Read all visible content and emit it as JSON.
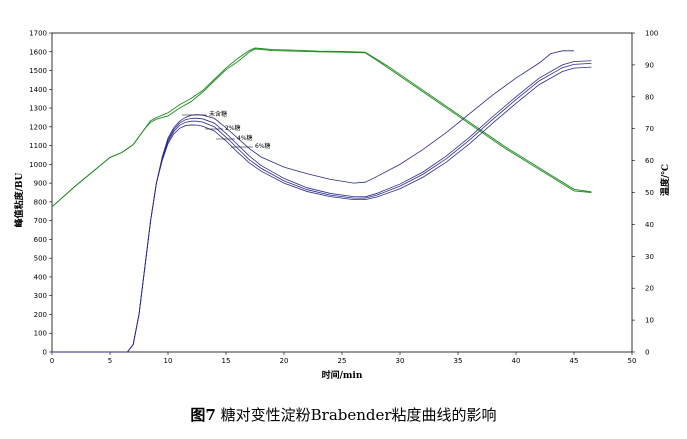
{
  "chart_data": {
    "type": "line",
    "xlabel": "时间/min",
    "ylabel_left": "峰值粘度/BU",
    "ylabel_right": "温度/℃",
    "xlim": [
      0,
      50
    ],
    "ylim_left": [
      0,
      1700
    ],
    "ylim_right": [
      0,
      100
    ],
    "x_ticks": [
      "0",
      "5",
      "10",
      "15",
      "20",
      "25",
      "30",
      "35",
      "40",
      "45",
      "50"
    ],
    "y_left_ticks": [
      "0",
      "100",
      "200",
      "300",
      "400",
      "500",
      "600",
      "700",
      "800",
      "900",
      "1000",
      "1100",
      "1200",
      "1300",
      "1400",
      "1500",
      "1600",
      "1700"
    ],
    "y_right_ticks": [
      "0",
      "10",
      "20",
      "30",
      "40",
      "50",
      "60",
      "70",
      "80",
      "90",
      "100"
    ],
    "annotations": [
      "未含糖",
      "2%糖",
      "4%糖",
      "6%糖"
    ],
    "colors": {
      "viscosity": "#2a2a8a",
      "temperature": "#1f8a1f"
    },
    "viscosity_series": [
      {
        "name": "未含糖",
        "points": [
          [
            0,
            0
          ],
          [
            5,
            0
          ],
          [
            6.5,
            0
          ],
          [
            7,
            40
          ],
          [
            7.5,
            200
          ],
          [
            8,
            450
          ],
          [
            8.5,
            700
          ],
          [
            9,
            900
          ],
          [
            9.5,
            1040
          ],
          [
            10,
            1140
          ],
          [
            10.5,
            1195
          ],
          [
            11,
            1230
          ],
          [
            11.5,
            1250
          ],
          [
            12,
            1262
          ],
          [
            12.5,
            1265
          ],
          [
            13,
            1262
          ],
          [
            14,
            1245
          ],
          [
            15,
            1195
          ],
          [
            16,
            1140
          ],
          [
            17,
            1085
          ],
          [
            18,
            1040
          ],
          [
            20,
            985
          ],
          [
            22,
            950
          ],
          [
            24,
            920
          ],
          [
            26,
            900
          ],
          [
            27,
            905
          ],
          [
            28,
            935
          ],
          [
            30,
            1000
          ],
          [
            32,
            1080
          ],
          [
            34,
            1170
          ],
          [
            36,
            1270
          ],
          [
            38,
            1370
          ],
          [
            40,
            1460
          ],
          [
            42,
            1540
          ],
          [
            43,
            1590
          ],
          [
            44,
            1605
          ],
          [
            45,
            1605
          ]
        ]
      },
      {
        "name": "2%糖",
        "points": [
          [
            0,
            0
          ],
          [
            5,
            0
          ],
          [
            6.5,
            0
          ],
          [
            7,
            40
          ],
          [
            7.5,
            200
          ],
          [
            8,
            450
          ],
          [
            8.5,
            700
          ],
          [
            9,
            900
          ],
          [
            9.5,
            1030
          ],
          [
            10,
            1130
          ],
          [
            10.5,
            1185
          ],
          [
            11,
            1220
          ],
          [
            11.5,
            1238
          ],
          [
            12,
            1245
          ],
          [
            12.5,
            1246
          ],
          [
            13,
            1242
          ],
          [
            14,
            1220
          ],
          [
            15,
            1165
          ],
          [
            16,
            1105
          ],
          [
            17,
            1045
          ],
          [
            18,
            995
          ],
          [
            20,
            925
          ],
          [
            22,
            875
          ],
          [
            24,
            845
          ],
          [
            26,
            828
          ],
          [
            27,
            827
          ],
          [
            28,
            845
          ],
          [
            30,
            895
          ],
          [
            32,
            960
          ],
          [
            34,
            1045
          ],
          [
            36,
            1145
          ],
          [
            38,
            1255
          ],
          [
            40,
            1360
          ],
          [
            42,
            1460
          ],
          [
            44,
            1530
          ],
          [
            45,
            1548
          ],
          [
            46.5,
            1552
          ]
        ]
      },
      {
        "name": "4%糖",
        "points": [
          [
            0,
            0
          ],
          [
            5,
            0
          ],
          [
            6.5,
            0
          ],
          [
            7,
            40
          ],
          [
            7.5,
            200
          ],
          [
            8,
            450
          ],
          [
            8.5,
            700
          ],
          [
            9,
            900
          ],
          [
            9.5,
            1025
          ],
          [
            10,
            1120
          ],
          [
            10.5,
            1175
          ],
          [
            11,
            1208
          ],
          [
            11.5,
            1224
          ],
          [
            12,
            1230
          ],
          [
            12.5,
            1230
          ],
          [
            13,
            1225
          ],
          [
            14,
            1200
          ],
          [
            15,
            1145
          ],
          [
            16,
            1085
          ],
          [
            17,
            1025
          ],
          [
            18,
            980
          ],
          [
            20,
            912
          ],
          [
            22,
            865
          ],
          [
            24,
            836
          ],
          [
            26,
            820
          ],
          [
            27,
            820
          ],
          [
            28,
            836
          ],
          [
            30,
            884
          ],
          [
            32,
            948
          ],
          [
            34,
            1030
          ],
          [
            36,
            1130
          ],
          [
            38,
            1240
          ],
          [
            40,
            1345
          ],
          [
            42,
            1445
          ],
          [
            44,
            1515
          ],
          [
            45,
            1533
          ],
          [
            46.5,
            1538
          ]
        ]
      },
      {
        "name": "6%糖",
        "points": [
          [
            0,
            0
          ],
          [
            5,
            0
          ],
          [
            6.5,
            0
          ],
          [
            7,
            40
          ],
          [
            7.5,
            200
          ],
          [
            8,
            450
          ],
          [
            8.5,
            700
          ],
          [
            9,
            900
          ],
          [
            9.5,
            1020
          ],
          [
            10,
            1110
          ],
          [
            10.5,
            1162
          ],
          [
            11,
            1192
          ],
          [
            11.5,
            1206
          ],
          [
            12,
            1210
          ],
          [
            12.5,
            1209
          ],
          [
            13,
            1203
          ],
          [
            14,
            1178
          ],
          [
            15,
            1125
          ],
          [
            16,
            1065
          ],
          [
            17,
            1008
          ],
          [
            18,
            965
          ],
          [
            20,
            900
          ],
          [
            22,
            855
          ],
          [
            24,
            828
          ],
          [
            26,
            812
          ],
          [
            27,
            812
          ],
          [
            28,
            826
          ],
          [
            30,
            870
          ],
          [
            32,
            932
          ],
          [
            34,
            1012
          ],
          [
            36,
            1110
          ],
          [
            38,
            1220
          ],
          [
            40,
            1325
          ],
          [
            42,
            1425
          ],
          [
            44,
            1495
          ],
          [
            45,
            1513
          ],
          [
            46.5,
            1518
          ]
        ]
      }
    ],
    "temperature_series": [
      {
        "points": [
          [
            0,
            45.5
          ],
          [
            2,
            52
          ],
          [
            4,
            58
          ],
          [
            5,
            61
          ],
          [
            6,
            62.5
          ],
          [
            7,
            65
          ],
          [
            8,
            70
          ],
          [
            8.5,
            72
          ],
          [
            9,
            73
          ],
          [
            10,
            74
          ],
          [
            11,
            76.5
          ],
          [
            12,
            78.5
          ],
          [
            13,
            81.5
          ],
          [
            14,
            85
          ],
          [
            15,
            88.5
          ],
          [
            16,
            91
          ],
          [
            17,
            94
          ],
          [
            17.5,
            95
          ],
          [
            19,
            94.5
          ],
          [
            21,
            94.3
          ],
          [
            23,
            94.1
          ],
          [
            25,
            94
          ],
          [
            27,
            93.8
          ],
          [
            29,
            89
          ],
          [
            31,
            84
          ],
          [
            33,
            79
          ],
          [
            35,
            74
          ],
          [
            37,
            69
          ],
          [
            39,
            64
          ],
          [
            41,
            59.5
          ],
          [
            43,
            55
          ],
          [
            45,
            50.5
          ],
          [
            46.5,
            50
          ]
        ]
      },
      {
        "points": [
          [
            0,
            45.5
          ],
          [
            2,
            52
          ],
          [
            4,
            58
          ],
          [
            5,
            61
          ],
          [
            6,
            62.5
          ],
          [
            7,
            65
          ],
          [
            8,
            70
          ],
          [
            8.5,
            72.5
          ],
          [
            9,
            73.5
          ],
          [
            10,
            75
          ],
          [
            11,
            77.5
          ],
          [
            12,
            79.5
          ],
          [
            13,
            82
          ],
          [
            14,
            85.5
          ],
          [
            15,
            89
          ],
          [
            16,
            92
          ],
          [
            17,
            94.5
          ],
          [
            17.5,
            95.3
          ],
          [
            19,
            94.8
          ],
          [
            21,
            94.6
          ],
          [
            23,
            94.3
          ],
          [
            25,
            94.2
          ],
          [
            27,
            94
          ],
          [
            29,
            89.5
          ],
          [
            31,
            84.5
          ],
          [
            33,
            79.5
          ],
          [
            35,
            74.5
          ],
          [
            37,
            69.5
          ],
          [
            39,
            64.5
          ],
          [
            41,
            60
          ],
          [
            43,
            55.5
          ],
          [
            45,
            51
          ],
          [
            46.5,
            50.2
          ]
        ]
      }
    ]
  },
  "caption": {
    "figure_label": "图7",
    "text": " 糖对变性淀粉Brabender粘度曲线的影响"
  }
}
